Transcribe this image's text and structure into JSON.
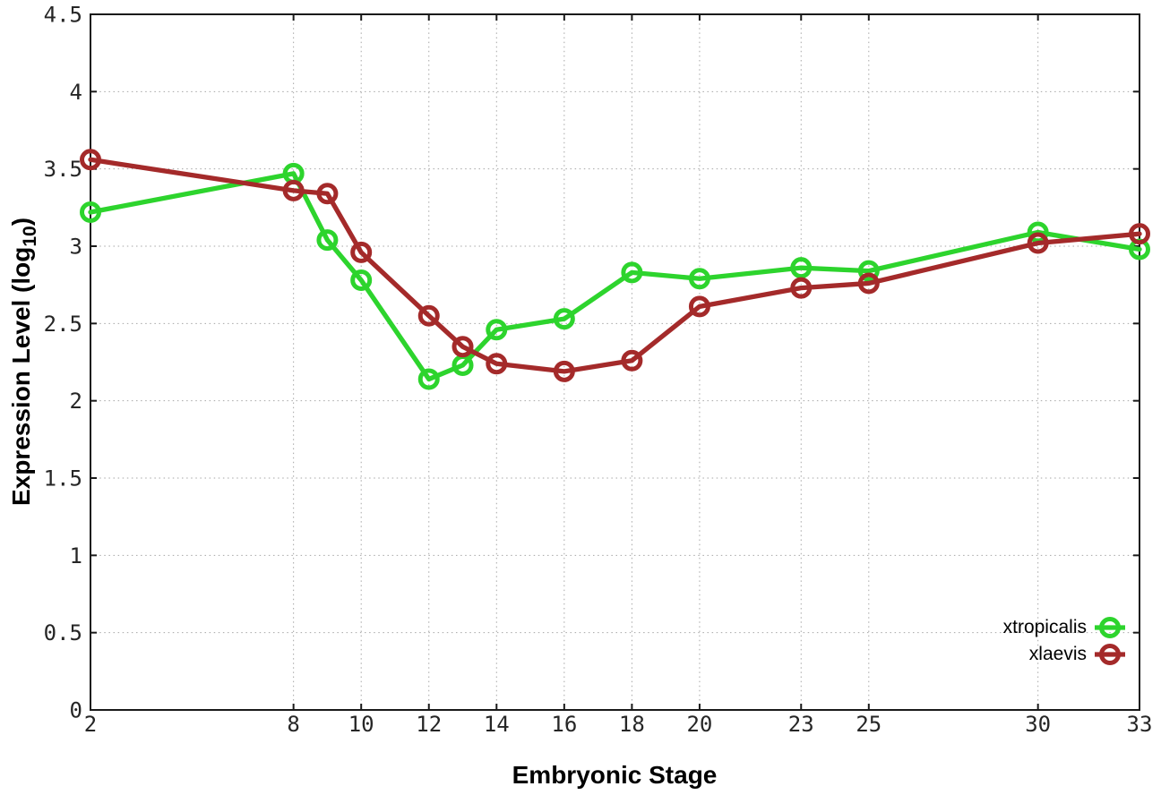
{
  "chart_data": {
    "type": "line",
    "title": "",
    "xlabel": "Embryonic Stage",
    "ylabel": {
      "prefix": "Expression Level (log",
      "subscript": "10",
      "suffix": ")"
    },
    "x_ticks": [
      "2",
      "8",
      "10",
      "12",
      "14",
      "16",
      "18",
      "20",
      "23",
      "25",
      "30",
      "33"
    ],
    "y_ticks": [
      "0",
      "0.5",
      "1",
      "1.5",
      "2",
      "2.5",
      "3",
      "3.5",
      "4",
      "4.5"
    ],
    "xlim": [
      2,
      33
    ],
    "ylim": [
      0,
      4.5
    ],
    "grid": true,
    "legend_position": "inside-bottom-right",
    "marker": "open-circle",
    "x": [
      2,
      8,
      9,
      10,
      12,
      13,
      14,
      16,
      18,
      20,
      23,
      25,
      30,
      33
    ],
    "series": [
      {
        "name": "xtropicalis",
        "color": "#2dd42d",
        "values": [
          3.22,
          3.47,
          3.04,
          2.78,
          2.14,
          2.23,
          2.46,
          2.53,
          2.83,
          2.79,
          2.86,
          2.84,
          3.09,
          2.98
        ]
      },
      {
        "name": "xlaevis",
        "color": "#a42a2a",
        "values": [
          3.56,
          3.36,
          3.34,
          2.96,
          2.55,
          2.35,
          2.24,
          2.19,
          2.26,
          2.61,
          2.73,
          2.76,
          3.02,
          3.08
        ]
      }
    ]
  }
}
